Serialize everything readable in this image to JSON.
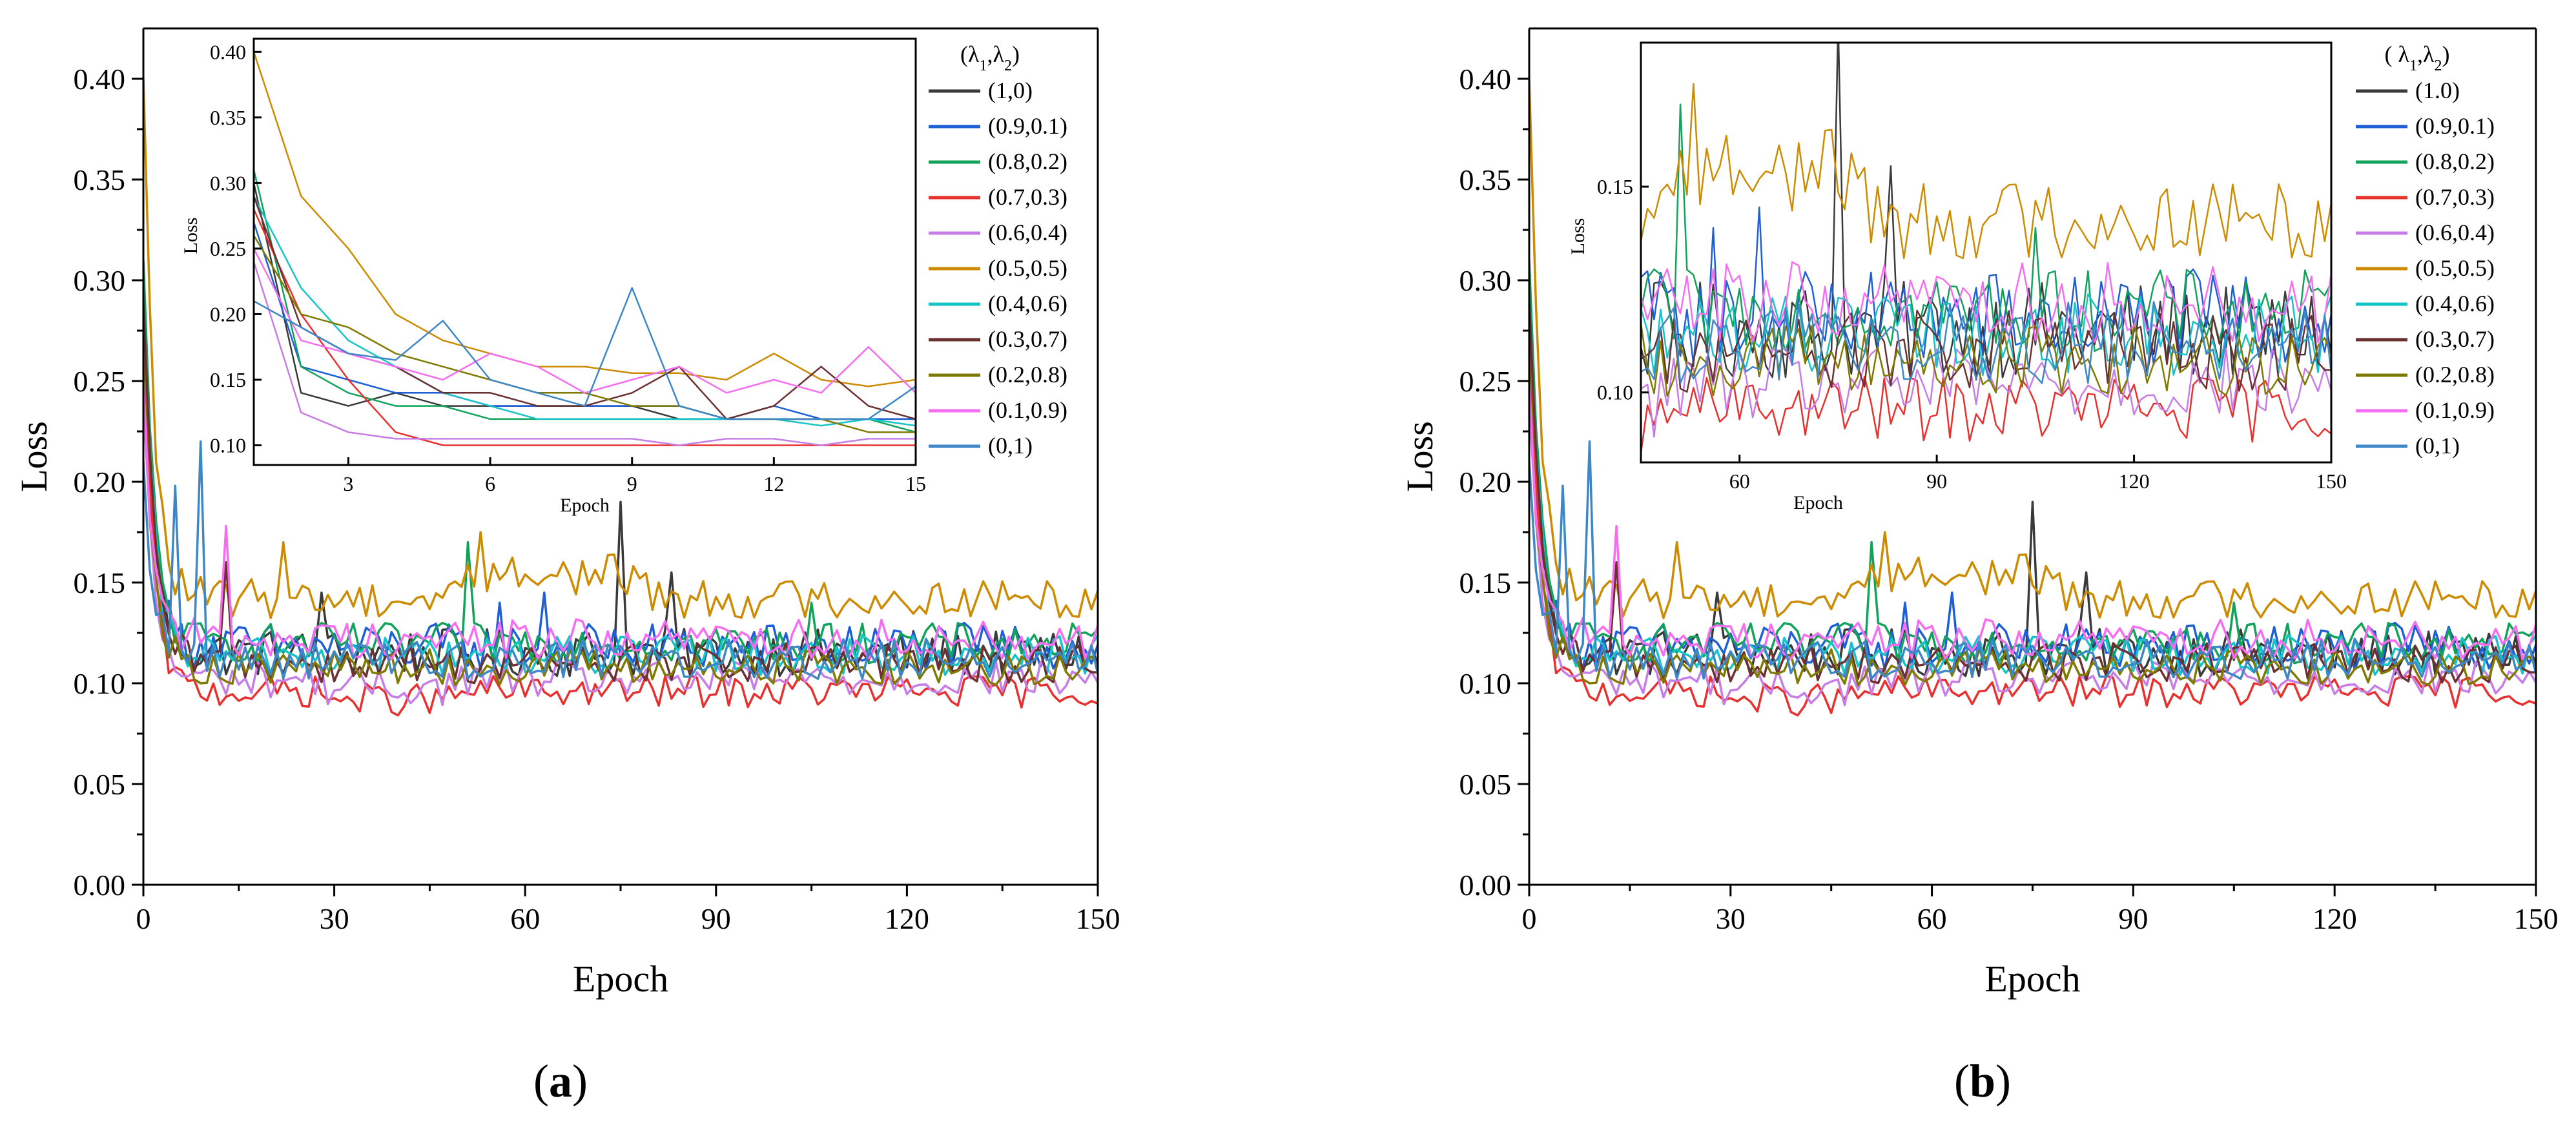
{
  "colors": [
    "#3a3a3a",
    "#1f5fd6",
    "#11a35a",
    "#e8302e",
    "#c77de6",
    "#cc8b00",
    "#16c4c8",
    "#6b3030",
    "#7f7a00",
    "#f56df0",
    "#3d87c6"
  ],
  "chart_data": [
    {
      "panel_label": "a",
      "type": "line",
      "xlabel": "Epoch",
      "ylabel": "Loss",
      "xlim": [
        0,
        150
      ],
      "ylim": [
        0,
        0.425
      ],
      "xticks": [
        "0",
        "30",
        "60",
        "90",
        "120",
        "150"
      ],
      "yticks": [
        "0.00",
        "0.05",
        "0.10",
        "0.15",
        "0.20",
        "0.25",
        "0.30",
        "0.35",
        "0.40"
      ],
      "legend_title": "(λ1,λ2)",
      "series": [
        {
          "name": "(1,0)",
          "start": 0.3,
          "base": 0.115,
          "amp": 0.012,
          "spikes": [
            [
              75,
              0.19
            ],
            [
              83,
              0.155
            ],
            [
              28,
              0.145
            ]
          ]
        },
        {
          "name": "(0.9,0.1)",
          "start": 0.27,
          "base": 0.118,
          "amp": 0.012,
          "spikes": [
            [
              63,
              0.145
            ],
            [
              56,
              0.14
            ]
          ]
        },
        {
          "name": "(0.8,0.2)",
          "start": 0.31,
          "base": 0.12,
          "amp": 0.01,
          "spikes": [
            [
              51,
              0.17
            ],
            [
              105,
              0.14
            ]
          ]
        },
        {
          "name": "(0.7,0.3)",
          "start": 0.28,
          "base": 0.096,
          "amp": 0.008,
          "spikes": []
        },
        {
          "name": "(0.6,0.4)",
          "start": 0.24,
          "base": 0.102,
          "amp": 0.009,
          "spikes": []
        },
        {
          "name": "(0.5,0.5)",
          "start": 0.4,
          "base": 0.142,
          "amp": 0.01,
          "spikes": [
            [
              53,
              0.175
            ],
            [
              22,
              0.17
            ]
          ]
        },
        {
          "name": "(0.4,0.6)",
          "start": 0.29,
          "base": 0.114,
          "amp": 0.01,
          "spikes": []
        },
        {
          "name": "(0.3,0.7)",
          "start": 0.29,
          "base": 0.11,
          "amp": 0.01,
          "spikes": [
            [
              13,
              0.16
            ]
          ]
        },
        {
          "name": "(0.2,0.8)",
          "start": 0.26,
          "base": 0.108,
          "amp": 0.009,
          "spikes": []
        },
        {
          "name": "(0.1,0.9)",
          "start": 0.25,
          "base": 0.122,
          "amp": 0.01,
          "spikes": [
            [
              13,
              0.178
            ]
          ]
        },
        {
          "name": "(0,1)",
          "start": 0.21,
          "base": 0.112,
          "amp": 0.01,
          "spikes": [
            [
              9,
              0.22
            ],
            [
              5,
              0.198
            ]
          ]
        }
      ],
      "inset": {
        "xlabel": "Epoch",
        "ylabel": "Loss",
        "xlim": [
          1,
          15
        ],
        "ylim": [
          0.085,
          0.41
        ],
        "xticks": [
          "3",
          "6",
          "9",
          "12",
          "15"
        ],
        "yticks": [
          "0.10",
          "0.15",
          "0.20",
          "0.25",
          "0.30",
          "0.35",
          "0.40"
        ],
        "x": [
          1,
          2,
          3,
          4,
          5,
          6,
          7,
          8,
          9,
          10,
          11,
          12,
          13,
          14,
          15
        ],
        "series": [
          {
            "name": "(1,0)",
            "values": [
              0.3,
              0.14,
              0.13,
              0.14,
              0.13,
              0.13,
              0.13,
              0.13,
              0.13,
              0.12,
              0.12,
              0.12,
              0.12,
              0.12,
              0.12
            ]
          },
          {
            "name": "(0.9,0.1)",
            "values": [
              0.27,
              0.16,
              0.15,
              0.14,
              0.14,
              0.13,
              0.13,
              0.13,
              0.13,
              0.13,
              0.12,
              0.13,
              0.12,
              0.12,
              0.12
            ]
          },
          {
            "name": "(0.8,0.2)",
            "values": [
              0.31,
              0.16,
              0.14,
              0.13,
              0.13,
              0.12,
              0.12,
              0.12,
              0.12,
              0.12,
              0.12,
              0.12,
              0.12,
              0.12,
              0.11
            ]
          },
          {
            "name": "(0.7,0.3)",
            "values": [
              0.28,
              0.2,
              0.15,
              0.11,
              0.1,
              0.1,
              0.1,
              0.1,
              0.1,
              0.1,
              0.1,
              0.1,
              0.1,
              0.1,
              0.1
            ]
          },
          {
            "name": "(0.6,0.4)",
            "values": [
              0.24,
              0.125,
              0.11,
              0.105,
              0.105,
              0.105,
              0.105,
              0.105,
              0.105,
              0.1,
              0.105,
              0.105,
              0.1,
              0.105,
              0.105
            ]
          },
          {
            "name": "(0.5,0.5)",
            "values": [
              0.4,
              0.29,
              0.25,
              0.2,
              0.18,
              0.17,
              0.16,
              0.16,
              0.155,
              0.155,
              0.15,
              0.17,
              0.15,
              0.145,
              0.15
            ]
          },
          {
            "name": "(0.4,0.6)",
            "values": [
              0.29,
              0.22,
              0.18,
              0.16,
              0.14,
              0.13,
              0.12,
              0.12,
              0.12,
              0.12,
              0.12,
              0.12,
              0.115,
              0.12,
              0.115
            ]
          },
          {
            "name": "(0.3,0.7)",
            "values": [
              0.29,
              0.19,
              0.17,
              0.16,
              0.14,
              0.14,
              0.13,
              0.13,
              0.14,
              0.16,
              0.12,
              0.13,
              0.16,
              0.13,
              0.12
            ]
          },
          {
            "name": "(0.2,0.8)",
            "values": [
              0.26,
              0.2,
              0.19,
              0.17,
              0.16,
              0.15,
              0.14,
              0.14,
              0.13,
              0.13,
              0.12,
              0.12,
              0.12,
              0.11,
              0.11
            ]
          },
          {
            "name": "(0.1,0.9)",
            "values": [
              0.25,
              0.18,
              0.17,
              0.16,
              0.15,
              0.17,
              0.16,
              0.14,
              0.15,
              0.16,
              0.14,
              0.15,
              0.14,
              0.175,
              0.14
            ]
          },
          {
            "name": "(0,1)",
            "values": [
              0.21,
              0.19,
              0.17,
              0.165,
              0.195,
              0.15,
              0.14,
              0.13,
              0.22,
              0.13,
              0.12,
              0.12,
              0.12,
              0.12,
              0.145
            ]
          }
        ]
      }
    },
    {
      "panel_label": "b",
      "type": "line",
      "xlabel": "Epoch",
      "ylabel": "Loss",
      "xlim": [
        0,
        150
      ],
      "ylim": [
        0,
        0.425
      ],
      "xticks": [
        "0",
        "30",
        "60",
        "90",
        "120",
        "150"
      ],
      "yticks": [
        "0.00",
        "0.05",
        "0.10",
        "0.15",
        "0.20",
        "0.25",
        "0.30",
        "0.35",
        "0.40"
      ],
      "legend_title": "( λ1,λ2)",
      "series": [
        {
          "name": "(1.0)",
          "start": 0.3,
          "base": 0.115,
          "amp": 0.012,
          "spikes": [
            [
              75,
              0.19
            ],
            [
              83,
              0.155
            ],
            [
              28,
              0.145
            ]
          ]
        },
        {
          "name": "(0.9,0.1)",
          "start": 0.27,
          "base": 0.118,
          "amp": 0.012,
          "spikes": [
            [
              63,
              0.145
            ],
            [
              56,
              0.14
            ]
          ]
        },
        {
          "name": "(0.8,0.2)",
          "start": 0.31,
          "base": 0.12,
          "amp": 0.01,
          "spikes": [
            [
              51,
              0.17
            ],
            [
              105,
              0.14
            ]
          ]
        },
        {
          "name": "(0.7,0.3)",
          "start": 0.28,
          "base": 0.096,
          "amp": 0.008,
          "spikes": []
        },
        {
          "name": "(0.6,0.4)",
          "start": 0.24,
          "base": 0.102,
          "amp": 0.009,
          "spikes": []
        },
        {
          "name": "(0.5,0.5)",
          "start": 0.4,
          "base": 0.142,
          "amp": 0.01,
          "spikes": [
            [
              53,
              0.175
            ],
            [
              22,
              0.17
            ]
          ]
        },
        {
          "name": "(0.4,0.6)",
          "start": 0.29,
          "base": 0.114,
          "amp": 0.01,
          "spikes": []
        },
        {
          "name": "(0.3,0.7)",
          "start": 0.29,
          "base": 0.11,
          "amp": 0.01,
          "spikes": [
            [
              13,
              0.16
            ]
          ]
        },
        {
          "name": "(0.2,0.8)",
          "start": 0.26,
          "base": 0.108,
          "amp": 0.009,
          "spikes": []
        },
        {
          "name": "(0.1,0.9)",
          "start": 0.25,
          "base": 0.122,
          "amp": 0.01,
          "spikes": [
            [
              13,
              0.178
            ]
          ]
        },
        {
          "name": "(0,1)",
          "start": 0.21,
          "base": 0.112,
          "amp": 0.01,
          "spikes": [
            [
              9,
              0.22
            ],
            [
              5,
              0.198
            ]
          ]
        }
      ],
      "inset": {
        "xlabel": "Epoch",
        "ylabel": "Loss",
        "xlim": [
          45,
          150
        ],
        "ylim": [
          0.083,
          0.185
        ],
        "xticks": [
          "60",
          "90",
          "120",
          "150"
        ],
        "yticks": [
          "0.10",
          "0.15"
        ],
        "x_range": [
          45,
          150
        ],
        "series_ref": "main"
      }
    }
  ]
}
